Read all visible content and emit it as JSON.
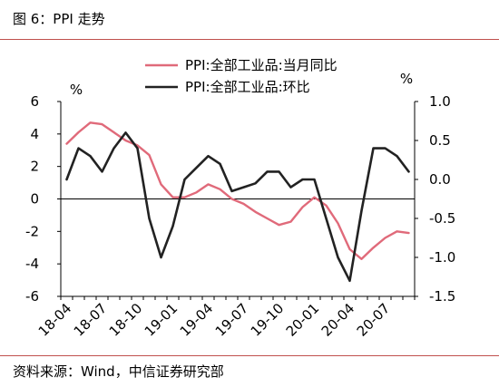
{
  "figure_title": "图 6：PPI 走势",
  "source": "资料来源：Wind，中信证券研究部",
  "colors": {
    "yoy": "#e06a7a",
    "mom": "#222222",
    "rule": "#c0504d"
  },
  "chart_data": {
    "type": "line",
    "x_tick_labels": [
      "18-04",
      "18-07",
      "18-10",
      "19-01",
      "19-04",
      "19-07",
      "19-10",
      "20-01",
      "20-04",
      "20-07"
    ],
    "x": [
      "18-04",
      "18-05",
      "18-06",
      "18-07",
      "18-08",
      "18-09",
      "18-10",
      "18-11",
      "18-12",
      "19-01",
      "19-02",
      "19-03",
      "19-04",
      "19-05",
      "19-06",
      "19-07",
      "19-08",
      "19-09",
      "19-10",
      "19-11",
      "19-12",
      "20-01",
      "20-02",
      "20-03",
      "20-04",
      "20-05",
      "20-06",
      "20-07",
      "20-08",
      "20-09"
    ],
    "left_axis": {
      "unit": "%",
      "ylim": [
        -6,
        6
      ],
      "ticks": [
        -6,
        -4,
        -2,
        0,
        2,
        4,
        6
      ]
    },
    "right_axis": {
      "unit": "%",
      "ylim": [
        -1.5,
        1.0
      ],
      "ticks": [
        "1.0",
        "0.5",
        "0.0",
        "-0.5",
        "-1.0",
        "-1.5"
      ]
    },
    "series": [
      {
        "name": "PPI:全部工业品:当月同比",
        "axis": "left",
        "values": [
          3.4,
          4.1,
          4.7,
          4.6,
          4.1,
          3.6,
          3.3,
          2.7,
          0.9,
          0.1,
          0.1,
          0.4,
          0.9,
          0.6,
          0.0,
          -0.3,
          -0.8,
          -1.2,
          -1.6,
          -1.4,
          -0.5,
          0.1,
          -0.4,
          -1.5,
          -3.1,
          -3.7,
          -3.0,
          -2.4,
          -2.0,
          -2.1
        ]
      },
      {
        "name": "PPI:全部工业品:环比",
        "axis": "right",
        "values": [
          0.0,
          0.4,
          0.3,
          0.1,
          0.4,
          0.6,
          0.4,
          -0.5,
          -1.0,
          -0.6,
          0.0,
          0.15,
          0.3,
          0.2,
          -0.15,
          -0.1,
          -0.05,
          0.1,
          0.1,
          -0.1,
          0.0,
          0.0,
          -0.5,
          -1.0,
          -1.3,
          -0.4,
          0.4,
          0.4,
          0.3,
          0.1
        ]
      }
    ]
  }
}
